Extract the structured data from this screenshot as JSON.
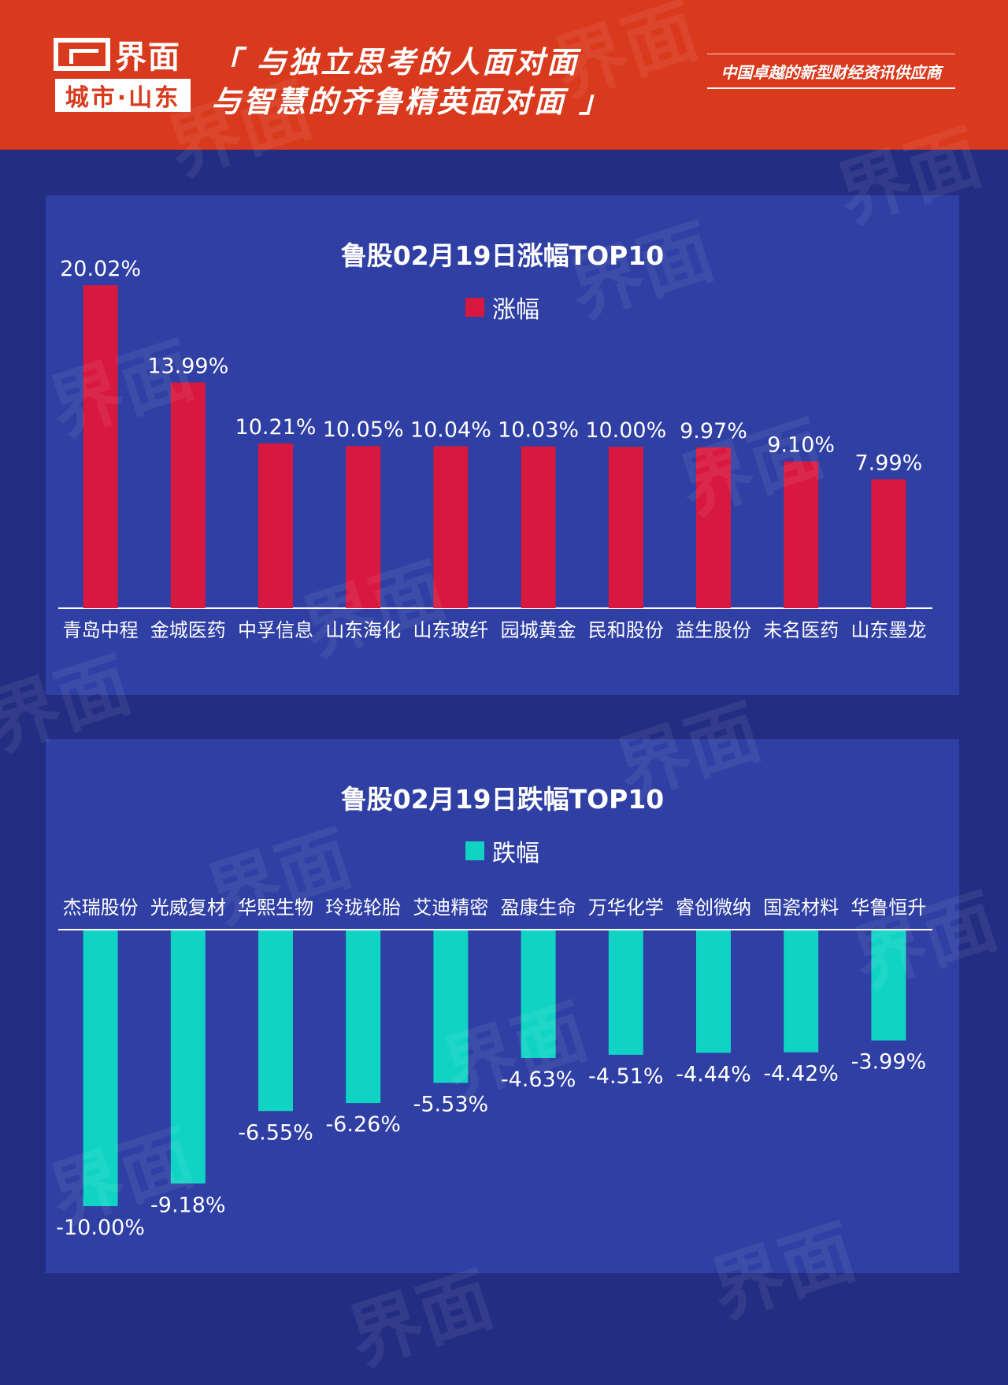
{
  "header": {
    "logo_word": "界面",
    "logo_sub": "城市·山东",
    "slogan_line1": "「 与独立思考的人面对面",
    "slogan_line2": "与智慧的齐鲁精英面对面 」",
    "tagline": "中国卓越的新型财经资讯供应商"
  },
  "colors": {
    "header_bg": "#d9391c",
    "page_bg": "#232e82",
    "panel_bg": "#2f3fa3",
    "gain_bar": "#d8183f",
    "loss_bar": "#10d3c3"
  },
  "chart_data": [
    {
      "type": "bar",
      "title": "鲁股02月19日涨幅TOP10",
      "legend": [
        "涨幅"
      ],
      "legend_position": "top-center",
      "grid": false,
      "categories": [
        "青岛中程",
        "金城医药",
        "中孚信息",
        "山东海化",
        "山东玻纤",
        "园城黄金",
        "民和股份",
        "益生股份",
        "未名医药",
        "山东墨龙"
      ],
      "series": [
        {
          "name": "涨幅",
          "values": [
            20.02,
            13.99,
            10.21,
            10.05,
            10.04,
            10.03,
            10.0,
            9.97,
            9.1,
            7.99
          ],
          "labels": [
            "20.02%",
            "13.99%",
            "10.21%",
            "10.05%",
            "10.04%",
            "10.03%",
            "10.00%",
            "9.97%",
            "9.10%",
            "7.99%"
          ]
        }
      ]
    },
    {
      "type": "bar",
      "title": "鲁股02月19日跌幅TOP10",
      "legend": [
        "跌幅"
      ],
      "legend_position": "top-center",
      "grid": false,
      "categories": [
        "杰瑞股份",
        "光威复材",
        "华熙生物",
        "玲珑轮胎",
        "艾迪精密",
        "盈康生命",
        "万华化学",
        "睿创微纳",
        "国瓷材料",
        "华鲁恒升"
      ],
      "series": [
        {
          "name": "跌幅",
          "values": [
            -10.0,
            -9.18,
            -6.55,
            -6.26,
            -5.53,
            -4.63,
            -4.51,
            -4.44,
            -4.42,
            -3.99
          ],
          "labels": [
            "-10.00%",
            "-9.18%",
            "-6.55%",
            "-6.26%",
            "-5.53%",
            "-4.63%",
            "-4.51%",
            "-4.44%",
            "-4.42%",
            "-3.99%"
          ]
        }
      ]
    }
  ],
  "watermark_text": "界面 城市·山东"
}
